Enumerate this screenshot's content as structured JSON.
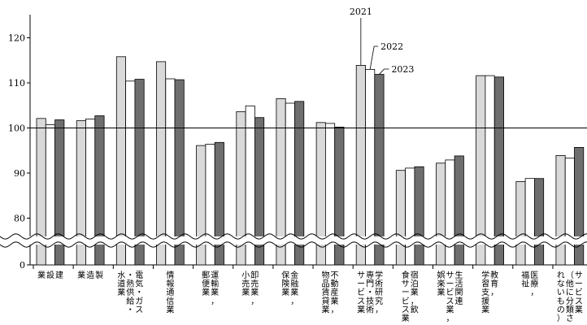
{
  "chart_data": {
    "type": "bar",
    "categories": [
      "建設業",
      "製造業",
      "電気・ガス・熱供給・水道業",
      "情報通信業",
      "運輸業，郵便業",
      "卸売業，小売業",
      "金融業，保険業",
      "不動産業，物品賃貸業",
      "学術研究，専門・技術サービス業",
      "宿泊業，飲食サービス業",
      "生活関連サービス業，娯楽業",
      "教育，学習支援業",
      "医療，福祉",
      "サービス業（他に分類されないもの）"
    ],
    "category_lines": [
      [
        "建",
        "設",
        "業"
      ],
      [
        "製",
        "造",
        "業"
      ],
      [
        "電気・ガス",
        "・熱供給・",
        "水道業"
      ],
      [
        "情報通信業"
      ],
      [
        "運輸業，",
        "郵便業"
      ],
      [
        "卸売業，",
        "小売業"
      ],
      [
        "金融業，",
        "保険業"
      ],
      [
        "不動産業，",
        "物品賃貸業"
      ],
      [
        "学術研究，",
        "専門・技術",
        "サービス業"
      ],
      [
        "宿泊業，飲",
        "食サービス業"
      ],
      [
        "生活関連",
        "サービス業，",
        "娯楽業"
      ],
      [
        "教育，",
        "学習支援業"
      ],
      [
        "医療，",
        "福祉"
      ],
      [
        "サービス業",
        "（他に分類さ",
        "れないもの）"
      ]
    ],
    "series": [
      {
        "name": "2021",
        "values": [
          102.1,
          101.6,
          115.8,
          114.7,
          96.1,
          103.6,
          106.5,
          101.2,
          113.9,
          90.6,
          92.2,
          111.6,
          88.1,
          93.9
        ]
      },
      {
        "name": "2022",
        "values": [
          100.7,
          102.0,
          110.4,
          110.9,
          96.4,
          104.9,
          105.5,
          101.0,
          113.0,
          91.1,
          92.9,
          111.6,
          88.8,
          93.3
        ]
      },
      {
        "name": "2023",
        "values": [
          101.8,
          102.7,
          110.8,
          110.7,
          96.8,
          102.3,
          105.9,
          100.2,
          111.9,
          91.4,
          93.8,
          111.3,
          88.8,
          95.7
        ]
      }
    ],
    "colors": [
      "#d9d9d9",
      "#ffffff",
      "#6e6e6e"
    ],
    "y_ticks": [
      0,
      80,
      90,
      100,
      110,
      120
    ],
    "ylim": [
      75,
      125
    ],
    "axis_break": true,
    "reference_line": 100,
    "grid": false,
    "legend": "callouts on the 学術研究，専門・技術サービス業 bars",
    "title": "",
    "xlabel": "",
    "ylabel": ""
  }
}
